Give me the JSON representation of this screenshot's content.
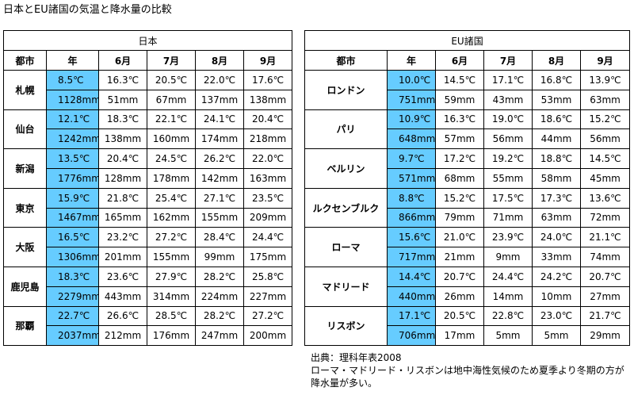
{
  "title": "日本とEU諸国の気温と降水量の比較",
  "japan": {
    "header": "日本",
    "columns": [
      "都市",
      "年",
      "6月",
      "7月",
      "8月",
      "9月"
    ],
    "cities": [
      {
        "name": "札幌",
        "temp": [
          "8.5℃",
          "16.3℃",
          "20.5℃",
          "22.0℃",
          "17.6℃"
        ],
        "rain": [
          "1128mm",
          "51mm",
          "67mm",
          "137mm",
          "138mm"
        ]
      },
      {
        "name": "仙台",
        "temp": [
          "12.1℃",
          "18.3℃",
          "22.1℃",
          "24.1℃",
          "20.4℃"
        ],
        "rain": [
          "1242mm",
          "138mm",
          "160mm",
          "174mm",
          "218mm"
        ]
      },
      {
        "name": "新潟",
        "temp": [
          "13.5℃",
          "20.4℃",
          "24.5℃",
          "26.2℃",
          "22.0℃"
        ],
        "rain": [
          "1776mm",
          "128mm",
          "178mm",
          "142mm",
          "163mm"
        ]
      },
      {
        "name": "東京",
        "temp": [
          "15.9℃",
          "21.8℃",
          "25.4℃",
          "27.1℃",
          "23.5℃"
        ],
        "rain": [
          "1467mm",
          "165mm",
          "162mm",
          "155mm",
          "209mm"
        ]
      },
      {
        "name": "大阪",
        "temp": [
          "16.5℃",
          "23.2℃",
          "27.2℃",
          "28.4℃",
          "24.4℃"
        ],
        "rain": [
          "1306mm",
          "201mm",
          "155mm",
          "99mm",
          "175mm"
        ]
      },
      {
        "name": "鹿児島",
        "temp": [
          "18.3℃",
          "23.6℃",
          "27.9℃",
          "28.2℃",
          "25.8℃"
        ],
        "rain": [
          "2279mm",
          "443mm",
          "314mm",
          "224mm",
          "227mm"
        ]
      },
      {
        "name": "那覇",
        "temp": [
          "22.7℃",
          "26.6℃",
          "28.5℃",
          "28.2℃",
          "27.2℃"
        ],
        "rain": [
          "2037mm",
          "212mm",
          "176mm",
          "247mm",
          "200mm"
        ]
      }
    ]
  },
  "eu": {
    "header": "EU諸国",
    "columns": [
      "都市",
      "年",
      "6月",
      "7月",
      "8月",
      "9月"
    ],
    "cities": [
      {
        "name": "ロンドン",
        "temp": [
          "10.0℃",
          "14.5℃",
          "17.1℃",
          "16.8℃",
          "13.9℃"
        ],
        "rain": [
          "751mm",
          "59mm",
          "43mm",
          "53mm",
          "63mm"
        ]
      },
      {
        "name": "パリ",
        "temp": [
          "10.9℃",
          "16.3℃",
          "19.0℃",
          "18.6℃",
          "15.2℃"
        ],
        "rain": [
          "648mm",
          "57mm",
          "56mm",
          "44mm",
          "56mm"
        ]
      },
      {
        "name": "ベルリン",
        "temp": [
          "9.7℃",
          "17.2℃",
          "19.2℃",
          "18.8℃",
          "14.5℃"
        ],
        "rain": [
          "571mm",
          "68mm",
          "55mm",
          "58mm",
          "45mm"
        ]
      },
      {
        "name": "ルクセンブルク",
        "temp": [
          "8.8℃",
          "15.2℃",
          "17.5℃",
          "17.3℃",
          "13.6℃"
        ],
        "rain": [
          "866mm",
          "79mm",
          "71mm",
          "63mm",
          "72mm"
        ]
      },
      {
        "name": "ローマ",
        "temp": [
          "15.6℃",
          "21.0℃",
          "23.9℃",
          "24.0℃",
          "21.1℃"
        ],
        "rain": [
          "717mm",
          "21mm",
          "9mm",
          "33mm",
          "74mm"
        ]
      },
      {
        "name": "マドリード",
        "temp": [
          "14.4℃",
          "20.7℃",
          "24.4℃",
          "24.2℃",
          "20.7℃"
        ],
        "rain": [
          "440mm",
          "26mm",
          "14mm",
          "10mm",
          "27mm"
        ]
      },
      {
        "name": "リスボン",
        "temp": [
          "17.1℃",
          "20.5℃",
          "22.8℃",
          "23.0℃",
          "21.7℃"
        ],
        "rain": [
          "706mm",
          "17mm",
          "5mm",
          "5mm",
          "29mm"
        ]
      }
    ]
  },
  "note": {
    "source": "出典：理科年表2008",
    "line1": "ローマ・マドリード・リスボンは地中海性気候のため夏季より冬期の方が",
    "line2": "降水量が多い。"
  },
  "colors": {
    "year_highlight": "#66ccff",
    "border": "#000000"
  }
}
